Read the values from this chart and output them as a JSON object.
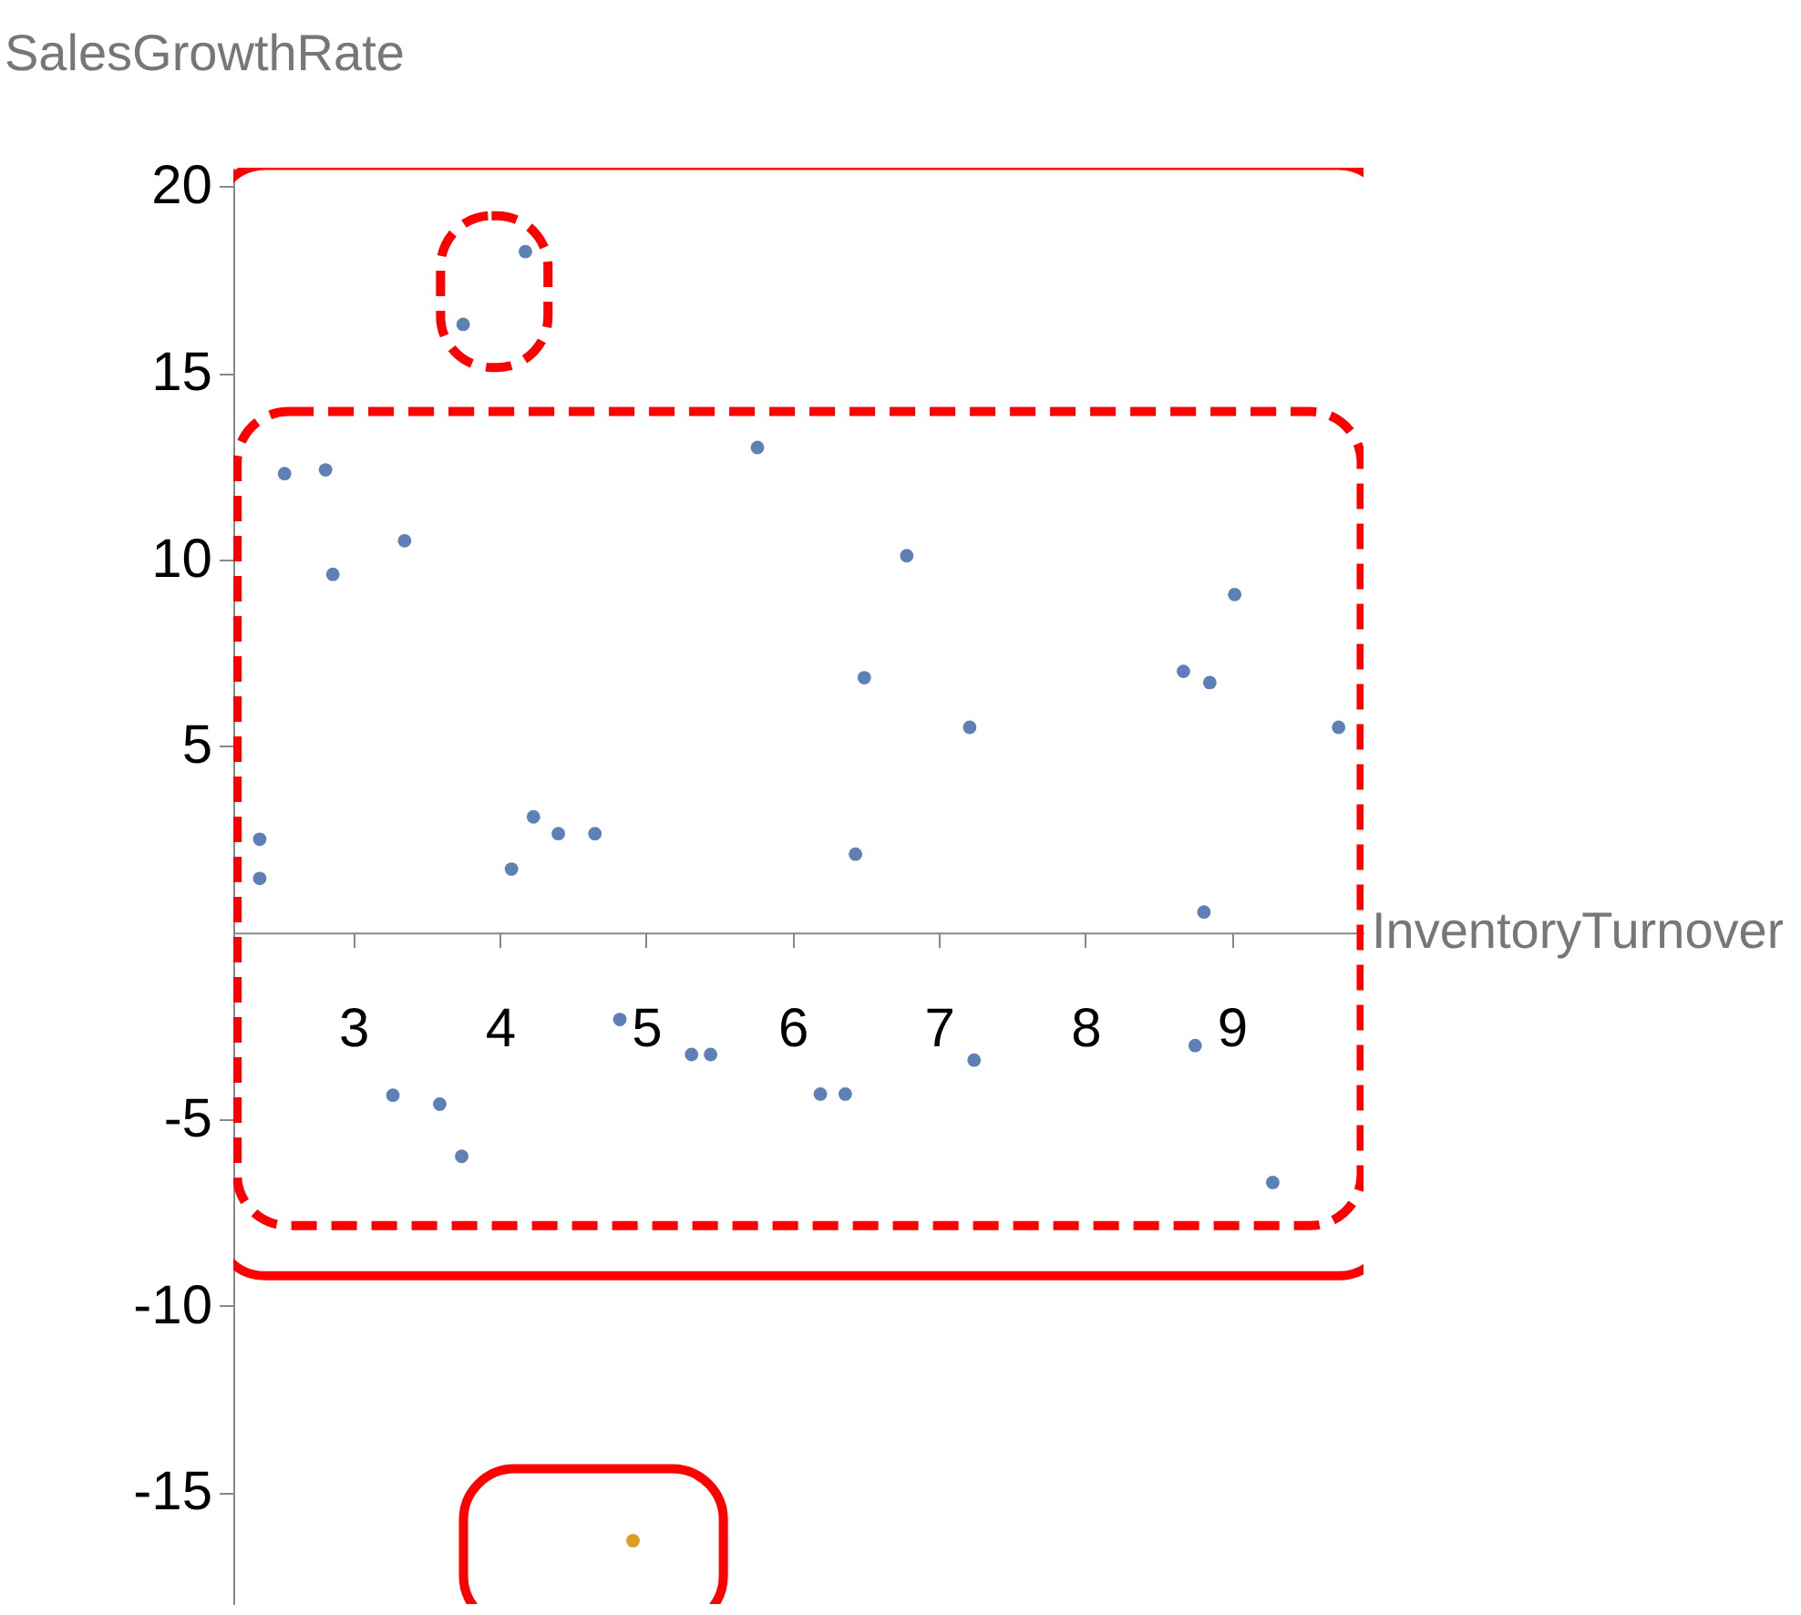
{
  "chart_data": {
    "type": "scatter",
    "xlabel": "InventoryTurnover",
    "ylabel": "SalesGrowthRate",
    "xlim": [
      2.18,
      9.9
    ],
    "ylim": [
      -18,
      20.5
    ],
    "xticks": [
      3,
      4,
      5,
      6,
      7,
      8,
      9
    ],
    "yticks": [
      -15,
      -10,
      -5,
      5,
      10,
      15,
      20
    ],
    "grid": false,
    "series": [
      {
        "color": "#5e81b5",
        "x": [
          2.53,
          2.81,
          2.86,
          3.35,
          2.36,
          2.36,
          4.08,
          4.23,
          4.4,
          4.65,
          4.82,
          5.31,
          5.44,
          6.19,
          6.36,
          3.27,
          3.59,
          3.74,
          5.76,
          6.78,
          6.49,
          7.21,
          8.67,
          8.85,
          9.02,
          9.73,
          6.43,
          8.81,
          7.24,
          8.75,
          9.28
        ],
        "values": [
          12.3,
          12.4,
          9.6,
          10.5,
          2.5,
          1.45,
          1.7,
          3.1,
          2.65,
          2.65,
          -2.33,
          -3.27,
          -3.27,
          -4.33,
          -4.33,
          -4.36,
          -4.6,
          -6.0,
          13.0,
          10.1,
          6.83,
          5.5,
          7.0,
          6.7,
          9.06,
          5.5,
          2.1,
          0.55,
          -3.42,
          -3.03,
          -6.7
        ]
      },
      {
        "color": "#5e81b5",
        "x": [
          4.175,
          3.75
        ],
        "values": [
          18.25,
          16.3
        ]
      },
      {
        "color": "#e19c24",
        "x": [
          4.91
        ],
        "values": [
          -16.3
        ]
      }
    ]
  }
}
